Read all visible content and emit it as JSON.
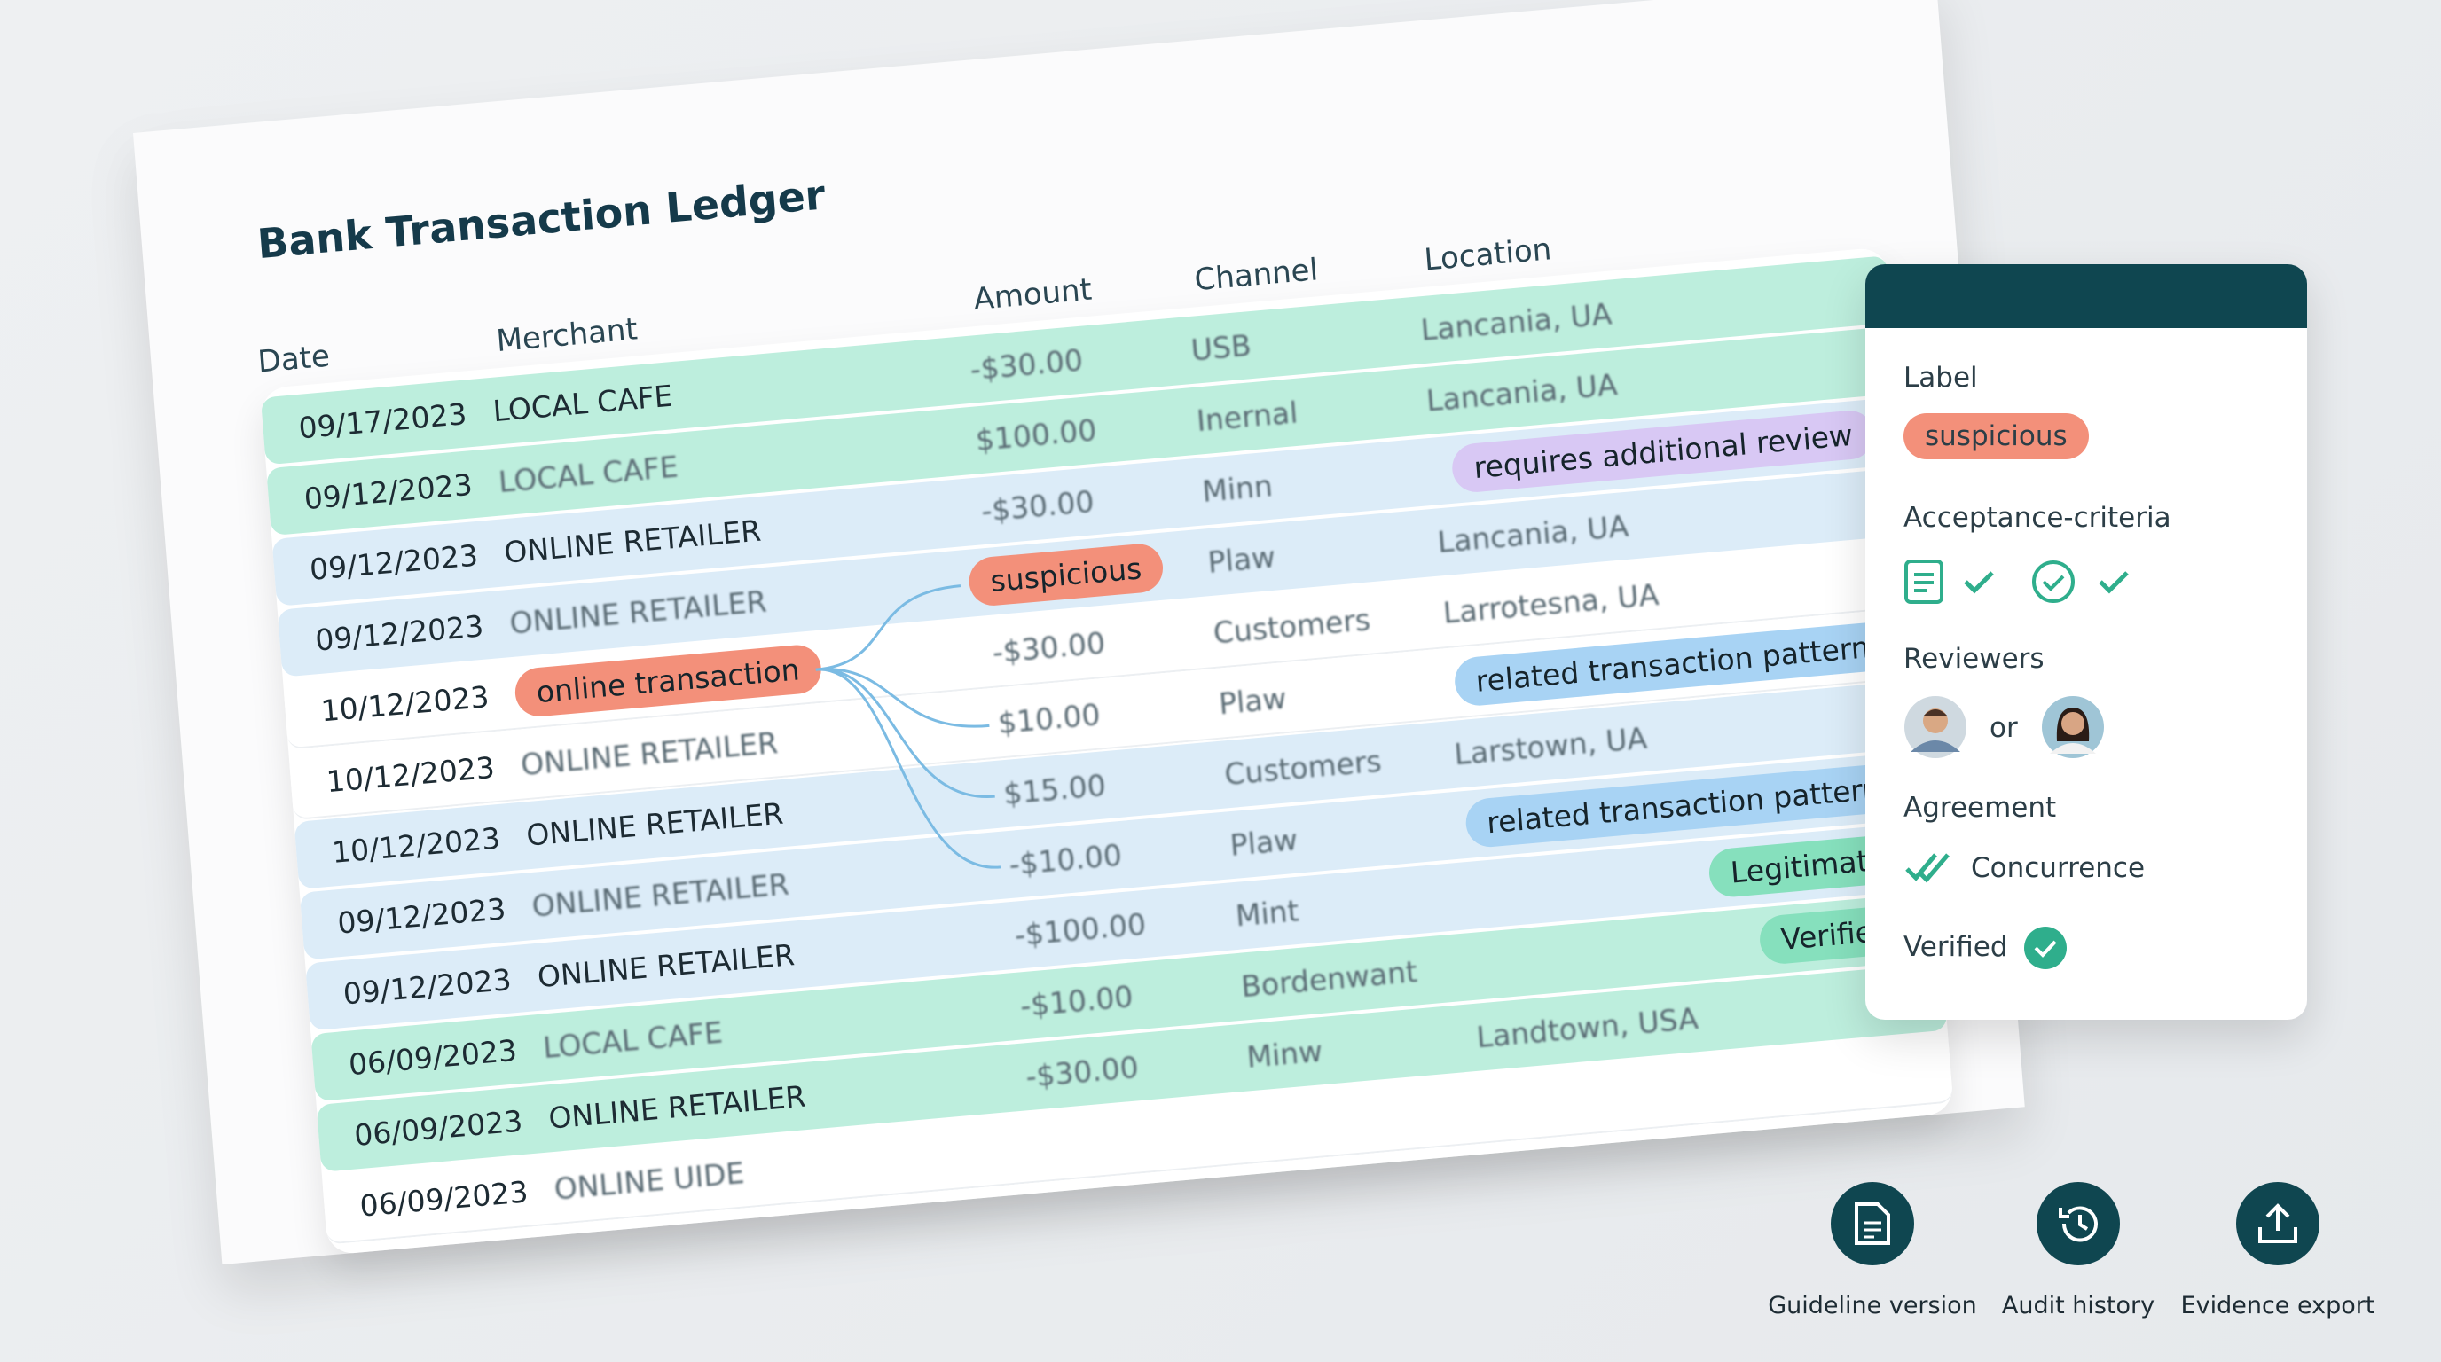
{
  "ledger": {
    "title": "Bank Transaction Ledger",
    "columns": [
      "Date",
      "Merchant",
      "Amount",
      "Channel",
      "Location"
    ],
    "rows": [
      {
        "date": "09/17/2023",
        "merchant": "LOCAL CAFE",
        "amount": "-$30.00",
        "channel": "USB",
        "location": "Lancania, UA",
        "tone": "green"
      },
      {
        "date": "09/12/2023",
        "merchant": "LOCAL CAFE",
        "amount": "$100.00",
        "channel": "Inernal",
        "location": "Lancania, UA",
        "tone": "green"
      },
      {
        "date": "09/12/2023",
        "merchant": "ONLINE RETAILER",
        "amount": "-$30.00",
        "channel": "Minn",
        "tag": "requires additional review",
        "tag_tone": "purple",
        "tone": "blue"
      },
      {
        "date": "09/12/2023",
        "merchant": "ONLINE RETAILER",
        "amount_tag": "suspicious",
        "channel": "Plaw",
        "location": "Lancania, UA",
        "tone": "blue"
      },
      {
        "date": "10/12/2023",
        "merchant_tag": "online transaction",
        "amount": "-$30.00",
        "channel": "Customers",
        "location": "Larrotesna, UA",
        "tone": "white"
      },
      {
        "date": "10/12/2023",
        "merchant": "ONLINE RETAILER",
        "amount": "$10.00",
        "channel": "Plaw",
        "tag": "related transaction pattern",
        "tag_tone": "blue",
        "tone": "white"
      },
      {
        "date": "10/12/2023",
        "merchant": "ONLINE RETAILER",
        "amount": "$15.00",
        "channel": "Customers",
        "location": "Larstown, UA",
        "tone": "blue"
      },
      {
        "date": "09/12/2023",
        "merchant": "ONLINE RETAILER",
        "amount": "-$10.00",
        "channel": "Plaw",
        "tag": "related transaction pattern",
        "tag_tone": "blue",
        "tone": "blue"
      },
      {
        "date": "09/12/2023",
        "merchant": "ONLINE RETAILER",
        "amount": "-$100.00",
        "channel": "Mint",
        "tag": "Legitimate",
        "tag_tone": "green",
        "tone": "blue"
      },
      {
        "date": "06/09/2023",
        "merchant": "LOCAL CAFE",
        "amount": "-$10.00",
        "channel": "Bordenwant",
        "tag": "Verified",
        "tag_tone": "green",
        "tone": "green"
      },
      {
        "date": "06/09/2023",
        "merchant": "ONLINE RETAILER",
        "amount": "-$30.00",
        "channel": "Minw",
        "location": "Landtown, USA",
        "tone": "green"
      },
      {
        "date": "06/09/2023",
        "merchant": "ONLINE UIDE",
        "tone": "white"
      }
    ]
  },
  "panel": {
    "label_heading": "Label",
    "label": "suspicious",
    "criteria_heading": "Acceptance-criteria",
    "reviewers_heading": "Reviewers",
    "reviewers_joiner": "or",
    "agreement_heading": "Agreement",
    "agreement": "Concurrence",
    "verified": "Verified"
  },
  "actions": [
    "Guideline version",
    "Audit history",
    "Evidence export"
  ]
}
